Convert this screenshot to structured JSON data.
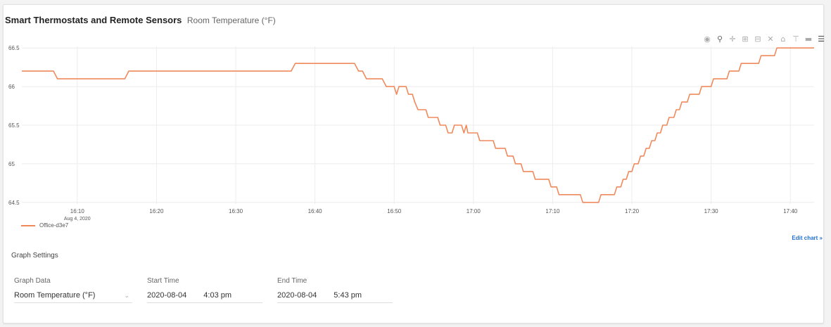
{
  "header": {
    "title": "Smart Thermostats and Remote Sensors",
    "subtitle": "Room Temperature (°F)"
  },
  "modebar": {
    "icons": [
      "camera-icon",
      "zoom-icon",
      "pan-icon",
      "zoom-in-icon",
      "zoom-out-icon",
      "autoscale-icon",
      "reset-axes-icon",
      "spike-lines-icon",
      "hover-closest-icon",
      "hover-compare-icon"
    ]
  },
  "chart_data": {
    "type": "line",
    "title": "",
    "xlabel": "",
    "ylabel": "",
    "x_range": [
      "2020-08-04 16:03",
      "2020-08-04 17:43"
    ],
    "ylim": [
      64.48,
      66.52
    ],
    "grid": true,
    "x_tick_labels": [
      "16:10",
      "16:20",
      "16:30",
      "16:40",
      "16:50",
      "17:00",
      "17:10",
      "17:20",
      "17:30",
      "17:40"
    ],
    "x_tick_values": [
      "16:10",
      "16:20",
      "16:30",
      "16:40",
      "16:50",
      "17:00",
      "17:10",
      "17:20",
      "17:30",
      "17:40"
    ],
    "x_tick_sublabel": "Aug 4, 2020",
    "y_tick_labels": [
      "66.5",
      "66",
      "65.5",
      "65",
      "64.5"
    ],
    "y_tick_values": [
      66.5,
      66,
      65.5,
      65,
      64.5
    ],
    "legend_placement": "bottom-left",
    "series": [
      {
        "name": "Office-d3e7",
        "color": "#f08a5d",
        "points": [
          [
            "16:03",
            66.2
          ],
          [
            "16:07",
            66.2
          ],
          [
            "16:07.5",
            66.1
          ],
          [
            "16:16",
            66.1
          ],
          [
            "16:16.5",
            66.2
          ],
          [
            "16:37",
            66.2
          ],
          [
            "16:37.5",
            66.3
          ],
          [
            "16:45",
            66.3
          ],
          [
            "16:45.5",
            66.2
          ],
          [
            "16:46",
            66.2
          ],
          [
            "16:46.5",
            66.1
          ],
          [
            "16:48.5",
            66.1
          ],
          [
            "16:49",
            66.0
          ],
          [
            "16:50",
            66.0
          ],
          [
            "16:50.3",
            65.9
          ],
          [
            "16:50.6",
            66.0
          ],
          [
            "16:51.5",
            66.0
          ],
          [
            "16:51.8",
            65.9
          ],
          [
            "16:52.3",
            65.9
          ],
          [
            "16:52.6",
            65.8
          ],
          [
            "16:53",
            65.7
          ],
          [
            "16:54",
            65.7
          ],
          [
            "16:54.3",
            65.6
          ],
          [
            "16:55.5",
            65.6
          ],
          [
            "16:55.8",
            65.5
          ],
          [
            "16:56.5",
            65.5
          ],
          [
            "16:56.8",
            65.4
          ],
          [
            "16:57.3",
            65.4
          ],
          [
            "16:57.6",
            65.5
          ],
          [
            "16:58.5",
            65.5
          ],
          [
            "16:58.8",
            65.4
          ],
          [
            "16:59.1",
            65.5
          ],
          [
            "16:59.3",
            65.4
          ],
          [
            "17:00.5",
            65.4
          ],
          [
            "17:00.8",
            65.3
          ],
          [
            "17:02.5",
            65.3
          ],
          [
            "17:02.8",
            65.2
          ],
          [
            "17:04",
            65.2
          ],
          [
            "17:04.3",
            65.1
          ],
          [
            "17:05",
            65.1
          ],
          [
            "17:05.3",
            65.0
          ],
          [
            "17:06",
            65.0
          ],
          [
            "17:06.3",
            64.9
          ],
          [
            "17:07.5",
            64.9
          ],
          [
            "17:07.8",
            64.8
          ],
          [
            "17:09.5",
            64.8
          ],
          [
            "17:09.8",
            64.7
          ],
          [
            "17:10.5",
            64.7
          ],
          [
            "17:10.8",
            64.6
          ],
          [
            "17:13.5",
            64.6
          ],
          [
            "17:13.8",
            64.5
          ],
          [
            "17:15.8",
            64.5
          ],
          [
            "17:16.1",
            64.6
          ],
          [
            "17:17.8",
            64.6
          ],
          [
            "17:18.1",
            64.7
          ],
          [
            "17:18.6",
            64.7
          ],
          [
            "17:18.9",
            64.8
          ],
          [
            "17:19.3",
            64.8
          ],
          [
            "17:19.6",
            64.9
          ],
          [
            "17:20",
            64.9
          ],
          [
            "17:20.3",
            65.0
          ],
          [
            "17:20.8",
            65.0
          ],
          [
            "17:21.1",
            65.1
          ],
          [
            "17:21.5",
            65.1
          ],
          [
            "17:21.8",
            65.2
          ],
          [
            "17:22.2",
            65.2
          ],
          [
            "17:22.5",
            65.3
          ],
          [
            "17:22.9",
            65.3
          ],
          [
            "17:23.2",
            65.4
          ],
          [
            "17:23.6",
            65.4
          ],
          [
            "17:23.9",
            65.5
          ],
          [
            "17:24.4",
            65.5
          ],
          [
            "17:24.7",
            65.6
          ],
          [
            "17:25.3",
            65.6
          ],
          [
            "17:25.6",
            65.7
          ],
          [
            "17:26",
            65.7
          ],
          [
            "17:26.3",
            65.8
          ],
          [
            "17:27",
            65.8
          ],
          [
            "17:27.3",
            65.9
          ],
          [
            "17:28.5",
            65.9
          ],
          [
            "17:28.8",
            66.0
          ],
          [
            "17:30",
            66.0
          ],
          [
            "17:30.3",
            66.1
          ],
          [
            "17:32",
            66.1
          ],
          [
            "17:32.3",
            66.2
          ],
          [
            "17:33.5",
            66.2
          ],
          [
            "17:33.8",
            66.3
          ],
          [
            "17:36",
            66.3
          ],
          [
            "17:36.3",
            66.4
          ],
          [
            "17:38",
            66.4
          ],
          [
            "17:38.3",
            66.5
          ],
          [
            "17:43",
            66.5
          ]
        ]
      }
    ]
  },
  "chart_footer": {
    "edit_chart": "Edit chart »"
  },
  "settings": {
    "title": "Graph Settings",
    "graph_data_label": "Graph Data",
    "graph_data_value": "Room Temperature (°F)",
    "start_label": "Start Time",
    "start_date": "2020-08-04",
    "start_time": "4:03 pm",
    "end_label": "End Time",
    "end_date": "2020-08-04",
    "end_time": "5:43 pm"
  }
}
